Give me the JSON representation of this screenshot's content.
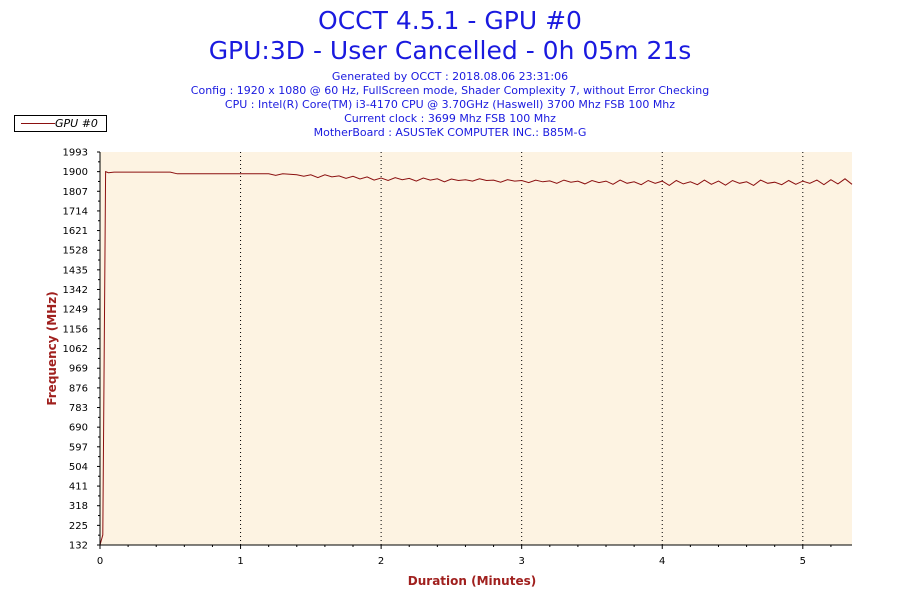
{
  "header": {
    "title": "OCCT 4.5.1 - GPU #0",
    "subtitle": "GPU:3D - User Cancelled - 0h 05m 21s",
    "info": [
      "Generated by OCCT : 2018.08.06 23:31:06",
      "Config : 1920 x 1080 @ 60 Hz, FullScreen mode, Shader Complexity 7, without Error Checking",
      "CPU : Intel(R) Core(TM) i3-4170 CPU @ 3.70GHz (Haswell) 3700 Mhz FSB 100 Mhz",
      "Current clock : 3699 Mhz FSB 100 Mhz",
      "MotherBoard : ASUSTeK COMPUTER INC.: B85M-G"
    ]
  },
  "colors": {
    "title": "#1a1adf",
    "axis_title": "#a0201e",
    "line": "#8b1010",
    "plot_bg": "#fdf3e2"
  },
  "chart_data": {
    "type": "line",
    "xlabel": "Duration (Minutes)",
    "ylabel": "Frequency (MHz)",
    "xlim": [
      0,
      5.35
    ],
    "ylim": [
      132,
      1993
    ],
    "x_ticks": [
      0,
      1,
      2,
      3,
      4,
      5
    ],
    "y_ticks": [
      132,
      225,
      318,
      411,
      504,
      597,
      690,
      783,
      876,
      969,
      1062,
      1156,
      1249,
      1342,
      1435,
      1528,
      1621,
      1714,
      1807,
      1900,
      1993
    ],
    "grid": "vertical dotted",
    "legend": "top-left",
    "series": [
      {
        "name": "GPU #0",
        "x": [
          0,
          0.02,
          0.04,
          0.06,
          0.1,
          0.3,
          0.5,
          0.55,
          0.6,
          0.8,
          1.0,
          1.2,
          1.25,
          1.3,
          1.4,
          1.45,
          1.5,
          1.55,
          1.6,
          1.65,
          1.7,
          1.75,
          1.8,
          1.85,
          1.9,
          1.95,
          2.0,
          2.05,
          2.1,
          2.15,
          2.2,
          2.25,
          2.3,
          2.35,
          2.4,
          2.45,
          2.5,
          2.55,
          2.6,
          2.65,
          2.7,
          2.75,
          2.8,
          2.85,
          2.9,
          2.95,
          3.0,
          3.05,
          3.1,
          3.15,
          3.2,
          3.25,
          3.3,
          3.35,
          3.4,
          3.45,
          3.5,
          3.55,
          3.6,
          3.65,
          3.7,
          3.75,
          3.8,
          3.85,
          3.9,
          3.95,
          4.0,
          4.05,
          4.1,
          4.15,
          4.2,
          4.25,
          4.3,
          4.35,
          4.4,
          4.45,
          4.5,
          4.55,
          4.6,
          4.65,
          4.7,
          4.75,
          4.8,
          4.85,
          4.9,
          4.95,
          5.0,
          5.05,
          5.1,
          5.15,
          5.2,
          5.25,
          5.3,
          5.35
        ],
        "values": [
          132,
          180,
          1900,
          1895,
          1898,
          1898,
          1898,
          1890,
          1890,
          1890,
          1890,
          1890,
          1882,
          1890,
          1885,
          1878,
          1885,
          1872,
          1885,
          1875,
          1880,
          1868,
          1878,
          1865,
          1875,
          1860,
          1870,
          1858,
          1872,
          1862,
          1868,
          1855,
          1870,
          1860,
          1866,
          1852,
          1865,
          1858,
          1862,
          1855,
          1866,
          1858,
          1860,
          1850,
          1862,
          1855,
          1858,
          1848,
          1860,
          1852,
          1856,
          1845,
          1860,
          1850,
          1855,
          1842,
          1858,
          1848,
          1855,
          1840,
          1860,
          1845,
          1852,
          1838,
          1858,
          1845,
          1855,
          1835,
          1858,
          1842,
          1852,
          1838,
          1860,
          1840,
          1855,
          1836,
          1858,
          1845,
          1852,
          1835,
          1860,
          1845,
          1850,
          1838,
          1858,
          1840,
          1855,
          1845,
          1860,
          1838,
          1862,
          1842,
          1866,
          1840
        ]
      }
    ]
  }
}
